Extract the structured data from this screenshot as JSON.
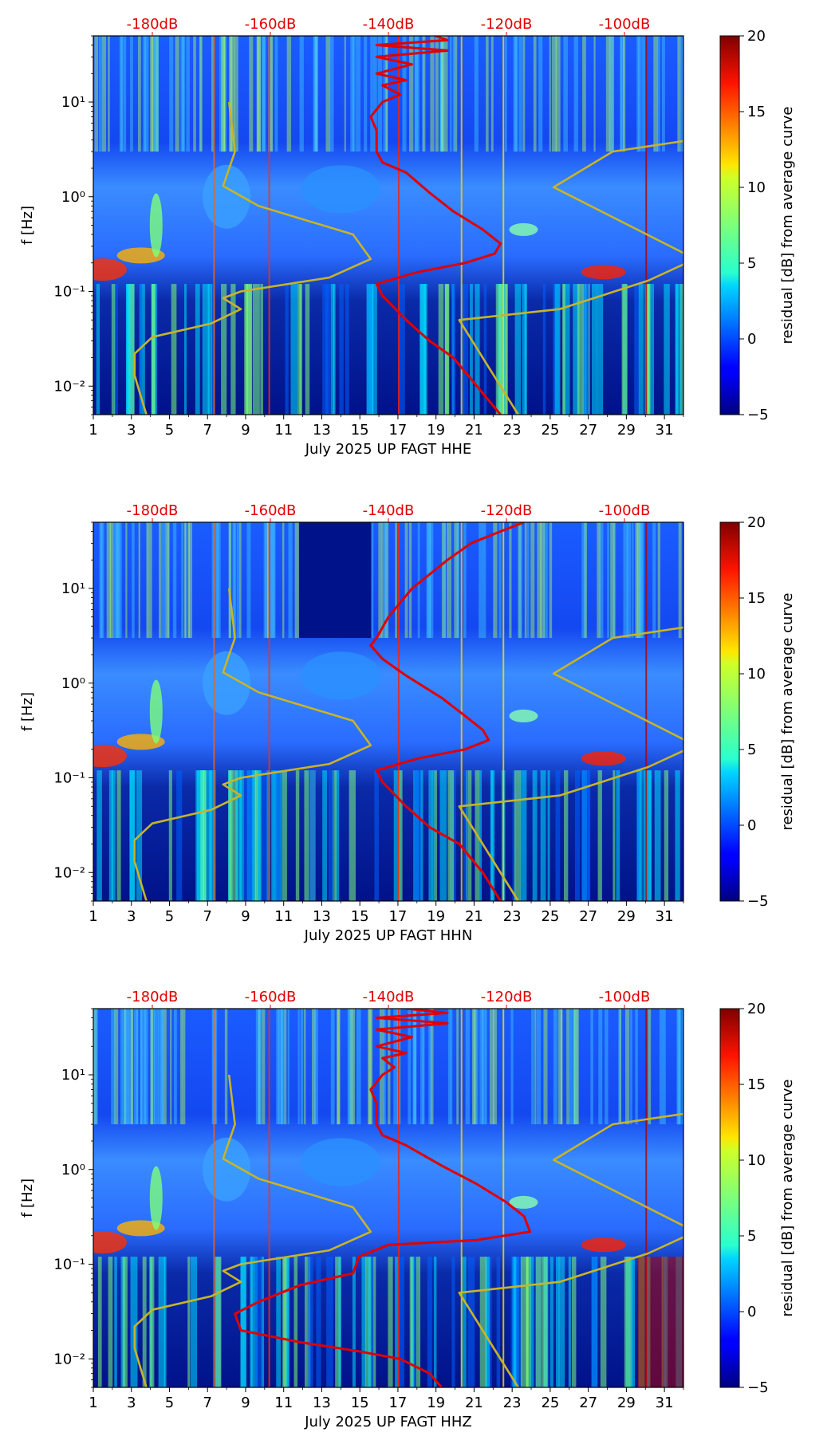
{
  "chart_data": [
    {
      "type": "heatmap",
      "title": "",
      "xlabel": "July 2025 UP FAGT  HHE",
      "ylabel": "f [Hz]",
      "x_ticks": [
        "1",
        "3",
        "5",
        "7",
        "9",
        "11",
        "13",
        "15",
        "17",
        "19",
        "21",
        "23",
        "25",
        "27",
        "29",
        "31"
      ],
      "x_range": [
        1,
        32
      ],
      "y_range": [
        0.005,
        50
      ],
      "y_scale": "log",
      "y_ticks": [
        {
          "value": 0.01,
          "label": "10⁻²"
        },
        {
          "value": 0.1,
          "label": "10⁻¹"
        },
        {
          "value": 1,
          "label": "10⁰"
        },
        {
          "value": 10,
          "label": "10¹"
        }
      ],
      "db_axis": {
        "ticks": [
          "-180dB",
          "-160dB",
          "-140dB",
          "-120dB",
          "-100dB"
        ],
        "values": [
          -180,
          -160,
          -140,
          -120,
          -100
        ],
        "range": [
          -190,
          -90
        ]
      },
      "colorbar": {
        "label": "residual [dB] from average curve",
        "range": [
          -5,
          20
        ],
        "ticks": [
          "−5",
          "0",
          "5",
          "10",
          "15",
          "20"
        ]
      },
      "series": [
        {
          "name": "average PSD curve",
          "color": "#e00000",
          "points": [
            [
              -132,
              50
            ],
            [
              -130,
              45
            ],
            [
              -142,
              40
            ],
            [
              -130,
              35
            ],
            [
              -142,
              30
            ],
            [
              -136,
              25
            ],
            [
              -142,
              20
            ],
            [
              -137,
              17
            ],
            [
              -141,
              15
            ],
            [
              -138,
              12
            ],
            [
              -141,
              10
            ],
            [
              -143,
              7
            ],
            [
              -142,
              5
            ],
            [
              -142,
              3
            ],
            [
              -141,
              2.3
            ],
            [
              -137,
              1.8
            ],
            [
              -133,
              1.1
            ],
            [
              -129,
              0.7
            ],
            [
              -124,
              0.45
            ],
            [
              -121,
              0.32
            ],
            [
              -122,
              0.25
            ],
            [
              -127,
              0.2
            ],
            [
              -135,
              0.16
            ],
            [
              -142,
              0.12
            ],
            [
              -141,
              0.09
            ],
            [
              -137,
              0.05
            ],
            [
              -133,
              0.03
            ],
            [
              -129,
              0.02
            ],
            [
              -125,
              0.01
            ],
            [
              -121,
              0.005
            ]
          ]
        },
        {
          "name": "noise model",
          "color": "#c8b428",
          "points": [
            [
              -181,
              0.005
            ],
            [
              -182,
              0.008
            ],
            [
              -183,
              0.013
            ],
            [
              -183,
              0.022
            ],
            [
              -180,
              0.033
            ],
            [
              -170,
              0.046
            ],
            [
              -165,
              0.065
            ],
            [
              -168,
              0.085
            ],
            [
              -165,
              0.1
            ],
            [
              -150,
              0.14
            ],
            [
              -143,
              0.22
            ],
            [
              -146,
              0.4
            ],
            [
              -162,
              0.8
            ],
            [
              -168,
              1.3
            ],
            [
              -166,
              3
            ],
            [
              -167,
              10
            ]
          ]
        },
        {
          "name": "high noise model",
          "color": "#c8b428",
          "points": [
            [
              -118,
              0.005
            ],
            [
              -128,
              0.05
            ],
            [
              -111,
              0.065
            ],
            [
              -96,
              0.13
            ],
            [
              -88,
              0.22
            ],
            [
              -112,
              1.26
            ],
            [
              -102,
              3
            ],
            [
              -83,
              4.5
            ],
            [
              -78,
              10
            ]
          ]
        }
      ]
    },
    {
      "type": "heatmap",
      "title": "",
      "xlabel": "July 2025 UP FAGT  HHN",
      "ylabel": "f [Hz]",
      "x_ticks": [
        "1",
        "3",
        "5",
        "7",
        "9",
        "11",
        "13",
        "15",
        "17",
        "19",
        "21",
        "23",
        "25",
        "27",
        "29",
        "31"
      ],
      "x_range": [
        1,
        32
      ],
      "y_range": [
        0.005,
        50
      ],
      "y_scale": "log",
      "y_ticks": [
        {
          "value": 0.01,
          "label": "10⁻²"
        },
        {
          "value": 0.1,
          "label": "10⁻¹"
        },
        {
          "value": 1,
          "label": "10⁰"
        },
        {
          "value": 10,
          "label": "10¹"
        }
      ],
      "db_axis": {
        "ticks": [
          "-180dB",
          "-160dB",
          "-140dB",
          "-120dB",
          "-100dB"
        ],
        "values": [
          -180,
          -160,
          -140,
          -120,
          -100
        ],
        "range": [
          -190,
          -90
        ]
      },
      "colorbar": {
        "label": "residual [dB] from average curve",
        "range": [
          -5,
          20
        ],
        "ticks": [
          "−5",
          "0",
          "5",
          "10",
          "15",
          "20"
        ]
      },
      "series": [
        {
          "name": "average PSD curve",
          "color": "#e00000",
          "points": [
            [
              -117,
              50
            ],
            [
              -121,
              40
            ],
            [
              -126,
              30
            ],
            [
              -130,
              20
            ],
            [
              -136,
              10
            ],
            [
              -140,
              5
            ],
            [
              -142,
              3
            ],
            [
              -143,
              2.5
            ],
            [
              -141,
              1.8
            ],
            [
              -137,
              1.2
            ],
            [
              -131,
              0.7
            ],
            [
              -127,
              0.45
            ],
            [
              -124,
              0.32
            ],
            [
              -123,
              0.25
            ],
            [
              -127,
              0.2
            ],
            [
              -135,
              0.16
            ],
            [
              -142,
              0.12
            ],
            [
              -141,
              0.09
            ],
            [
              -137,
              0.05
            ],
            [
              -133,
              0.03
            ],
            [
              -128,
              0.02
            ],
            [
              -124,
              0.01
            ],
            [
              -121,
              0.005
            ]
          ]
        },
        {
          "name": "noise model",
          "color": "#c8b428",
          "points": [
            [
              -181,
              0.005
            ],
            [
              -182,
              0.008
            ],
            [
              -183,
              0.013
            ],
            [
              -183,
              0.022
            ],
            [
              -180,
              0.033
            ],
            [
              -170,
              0.046
            ],
            [
              -165,
              0.065
            ],
            [
              -168,
              0.085
            ],
            [
              -165,
              0.1
            ],
            [
              -150,
              0.14
            ],
            [
              -143,
              0.22
            ],
            [
              -146,
              0.4
            ],
            [
              -162,
              0.8
            ],
            [
              -168,
              1.3
            ],
            [
              -166,
              3
            ],
            [
              -167,
              10
            ]
          ]
        },
        {
          "name": "high noise model",
          "color": "#c8b428",
          "points": [
            [
              -118,
              0.005
            ],
            [
              -128,
              0.05
            ],
            [
              -111,
              0.065
            ],
            [
              -96,
              0.13
            ],
            [
              -88,
              0.22
            ],
            [
              -112,
              1.26
            ],
            [
              -102,
              3
            ],
            [
              -83,
              4.5
            ],
            [
              -78,
              10
            ]
          ]
        }
      ]
    },
    {
      "type": "heatmap",
      "title": "",
      "xlabel": "July 2025 UP FAGT  HHZ",
      "ylabel": "f [Hz]",
      "x_ticks": [
        "1",
        "3",
        "5",
        "7",
        "9",
        "11",
        "13",
        "15",
        "17",
        "19",
        "21",
        "23",
        "25",
        "27",
        "29",
        "31"
      ],
      "x_range": [
        1,
        32
      ],
      "y_range": [
        0.005,
        50
      ],
      "y_scale": "log",
      "y_ticks": [
        {
          "value": 0.01,
          "label": "10⁻²"
        },
        {
          "value": 0.1,
          "label": "10⁻¹"
        },
        {
          "value": 1,
          "label": "10⁰"
        },
        {
          "value": 10,
          "label": "10¹"
        }
      ],
      "db_axis": {
        "ticks": [
          "-180dB",
          "-160dB",
          "-140dB",
          "-120dB",
          "-100dB"
        ],
        "values": [
          -180,
          -160,
          -140,
          -120,
          -100
        ],
        "range": [
          -190,
          -90
        ]
      },
      "colorbar": {
        "label": "residual [dB] from average curve",
        "range": [
          -5,
          20
        ],
        "ticks": [
          "−5",
          "0",
          "5",
          "10",
          "15",
          "20"
        ]
      },
      "series": [
        {
          "name": "average PSD curve",
          "color": "#e00000",
          "points": [
            [
              -137,
              50
            ],
            [
              -130,
              45
            ],
            [
              -142,
              40
            ],
            [
              -130,
              35
            ],
            [
              -142,
              30
            ],
            [
              -136,
              25
            ],
            [
              -142,
              20
            ],
            [
              -137,
              17
            ],
            [
              -141,
              15
            ],
            [
              -139,
              12
            ],
            [
              -141,
              10
            ],
            [
              -143,
              7
            ],
            [
              -142,
              5
            ],
            [
              -142,
              3
            ],
            [
              -141,
              2.3
            ],
            [
              -137,
              1.8
            ],
            [
              -131,
              1.1
            ],
            [
              -125,
              0.7
            ],
            [
              -120,
              0.45
            ],
            [
              -117,
              0.32
            ],
            [
              -116,
              0.22
            ],
            [
              -125,
              0.18
            ],
            [
              -140,
              0.16
            ],
            [
              -145,
              0.12
            ],
            [
              -146,
              0.08
            ],
            [
              -155,
              0.06
            ],
            [
              -162,
              0.04
            ],
            [
              -166,
              0.03
            ],
            [
              -165,
              0.02
            ],
            [
              -155,
              0.015
            ],
            [
              -145,
              0.012
            ],
            [
              -138,
              0.01
            ],
            [
              -133,
              0.007
            ],
            [
              -131,
              0.005
            ]
          ]
        },
        {
          "name": "noise model",
          "color": "#c8b428",
          "points": [
            [
              -181,
              0.005
            ],
            [
              -182,
              0.008
            ],
            [
              -183,
              0.013
            ],
            [
              -183,
              0.022
            ],
            [
              -180,
              0.033
            ],
            [
              -170,
              0.046
            ],
            [
              -165,
              0.065
            ],
            [
              -168,
              0.085
            ],
            [
              -165,
              0.1
            ],
            [
              -150,
              0.14
            ],
            [
              -143,
              0.22
            ],
            [
              -146,
              0.4
            ],
            [
              -162,
              0.8
            ],
            [
              -168,
              1.3
            ],
            [
              -166,
              3
            ],
            [
              -167,
              10
            ]
          ]
        },
        {
          "name": "high noise model",
          "color": "#c8b428",
          "points": [
            [
              -118,
              0.005
            ],
            [
              -128,
              0.05
            ],
            [
              -111,
              0.065
            ],
            [
              -96,
              0.13
            ],
            [
              -88,
              0.22
            ],
            [
              -112,
              1.26
            ],
            [
              -102,
              3
            ],
            [
              -83,
              4.5
            ],
            [
              -78,
              10
            ]
          ]
        }
      ]
    }
  ],
  "colors": {
    "db_labels": "#e00000",
    "average_curve": "#e00000",
    "noise_models": "#c8b428",
    "heatmap_background": "#00128a"
  }
}
